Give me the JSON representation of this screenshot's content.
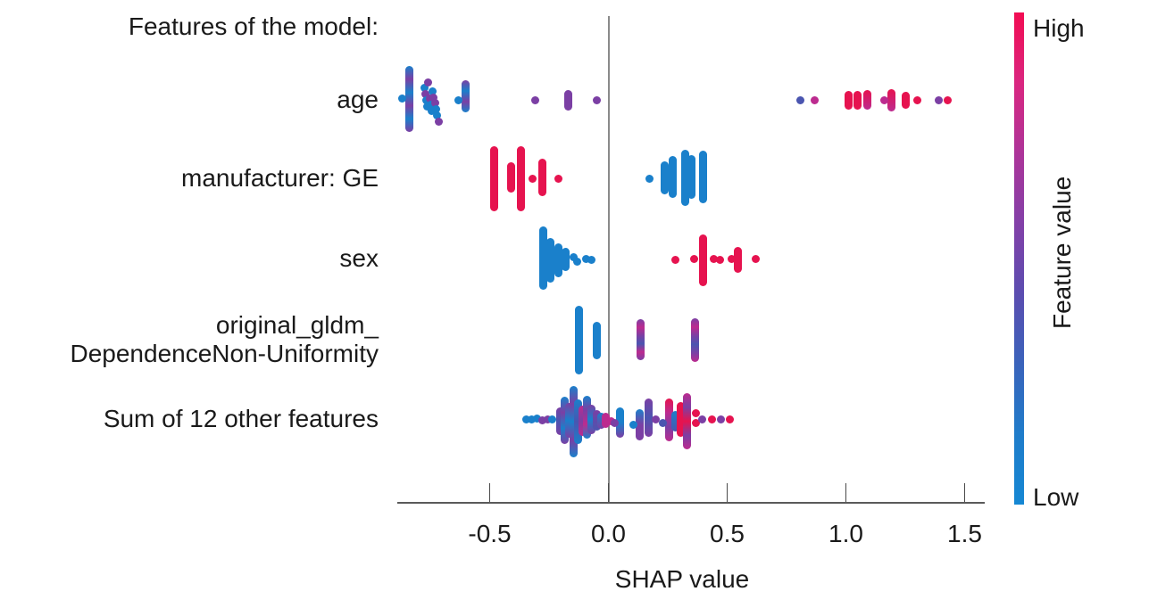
{
  "chart_data": {
    "type": "scatter",
    "subtype": "shap-beeswarm",
    "title": "Features of the model:",
    "xlabel": "SHAP value",
    "xlim": [
      -0.89,
      1.58
    ],
    "x_ticks": [
      -0.5,
      0.0,
      0.5,
      1.0,
      1.5
    ],
    "x_tick_labels": [
      "-0.5",
      "0.0",
      "0.5",
      "1.0",
      "1.5"
    ],
    "grid": false,
    "zero_reference_line": true,
    "legend": {
      "position": "right",
      "colorbar_label": "Feature value",
      "high": "High",
      "low": "Low",
      "gradient": [
        "#f20c52",
        "#da2680",
        "#ad3499",
        "#8340a8",
        "#5b4db0",
        "#3a63bb",
        "#1f7cca",
        "#1587d3"
      ]
    },
    "palette": {
      "B": "#1a80cb",
      "V": "#4a55b0",
      "P": "#7b3fa4",
      "M": "#bc2b8f",
      "R": "#e6134f"
    },
    "features": [
      {
        "label": "age",
        "bars": [
          [
            -0.84,
            -34,
            31,
            [
              "B",
              "P",
              "B",
              "P",
              "B",
              "P"
            ]
          ],
          [
            -0.6,
            -18,
            9,
            [
              "P",
              "B",
              "P",
              "B"
            ]
          ],
          [
            -0.17,
            -7,
            7,
            [
              "P"
            ]
          ],
          [
            1.01,
            -6,
            6,
            [
              "R"
            ]
          ],
          [
            1.05,
            -6,
            6,
            [
              "R"
            ]
          ],
          [
            1.09,
            -7,
            6,
            [
              "R",
              "M"
            ]
          ],
          [
            1.19,
            -8,
            8,
            [
              "R",
              "M"
            ]
          ],
          [
            1.25,
            -5,
            5,
            [
              "R"
            ]
          ]
        ],
        "dots": [
          [
            -0.87,
            -2,
            "B"
          ],
          [
            -0.775,
            -14,
            "B"
          ],
          [
            -0.77,
            -7,
            "P"
          ],
          [
            -0.768,
            0,
            "B"
          ],
          [
            -0.763,
            7,
            "B"
          ],
          [
            -0.758,
            -20,
            "P"
          ],
          [
            -0.753,
            -2,
            "P"
          ],
          [
            -0.748,
            5,
            "B"
          ],
          [
            -0.744,
            12,
            "B"
          ],
          [
            -0.74,
            -10,
            "B"
          ],
          [
            -0.735,
            -3,
            "P"
          ],
          [
            -0.73,
            3,
            "P"
          ],
          [
            -0.726,
            10,
            "B"
          ],
          [
            -0.72,
            17,
            "B"
          ],
          [
            -0.716,
            24,
            "P"
          ],
          [
            -0.63,
            0,
            "B"
          ],
          [
            -0.31,
            0,
            "P"
          ],
          [
            -0.05,
            0,
            "P"
          ],
          [
            0.81,
            0,
            "V"
          ],
          [
            0.87,
            0,
            "M"
          ],
          [
            1.16,
            0,
            "M"
          ],
          [
            1.3,
            0,
            "R"
          ],
          [
            1.39,
            0,
            "P"
          ],
          [
            1.43,
            0,
            "R"
          ]
        ]
      },
      {
        "label": "manufacturer: GE",
        "bars": [
          [
            -0.48,
            -32,
            32,
            [
              "R"
            ]
          ],
          [
            -0.41,
            -14,
            11,
            [
              "R"
            ]
          ],
          [
            -0.37,
            -32,
            32,
            [
              "R"
            ]
          ],
          [
            -0.28,
            -18,
            15,
            [
              "R"
            ]
          ],
          [
            0.237,
            -15,
            13,
            [
              "B"
            ]
          ],
          [
            0.271,
            -21,
            17,
            [
              "B"
            ]
          ],
          [
            0.323,
            -28,
            26,
            [
              "B"
            ]
          ],
          [
            0.35,
            -22,
            18,
            [
              "B"
            ]
          ],
          [
            0.398,
            -27,
            23,
            [
              "B"
            ]
          ]
        ],
        "dots": [
          [
            -0.32,
            0,
            "R"
          ],
          [
            -0.21,
            0,
            "R"
          ],
          [
            0.173,
            0,
            "B"
          ]
        ]
      },
      {
        "label": "sex",
        "bars": [
          [
            -0.275,
            -32,
            30,
            [
              "B"
            ]
          ],
          [
            -0.243,
            -19,
            22,
            [
              "B"
            ]
          ],
          [
            -0.209,
            -13,
            16,
            [
              "B"
            ]
          ],
          [
            -0.181,
            -8,
            9,
            [
              "B"
            ]
          ],
          [
            0.398,
            -23,
            26,
            [
              "R"
            ]
          ],
          [
            0.545,
            -9,
            11,
            [
              "R"
            ]
          ]
        ],
        "dots": [
          [
            -0.147,
            -2,
            "B"
          ],
          [
            -0.132,
            3,
            "B"
          ],
          [
            -0.094,
            0,
            "B"
          ],
          [
            -0.071,
            1,
            "B"
          ],
          [
            0.283,
            1,
            "R"
          ],
          [
            0.362,
            0,
            "R"
          ],
          [
            0.444,
            0,
            "R"
          ],
          [
            0.47,
            1,
            "R"
          ],
          [
            0.52,
            0,
            "R"
          ],
          [
            0.62,
            0,
            "R"
          ]
        ]
      },
      {
        "label": "original_gldm_\nDependenceNon-Uniformity",
        "bars": [
          [
            -0.124,
            -34,
            34,
            [
              "B"
            ]
          ],
          [
            -0.049,
            -16,
            17,
            [
              "B"
            ]
          ],
          [
            0.135,
            -19,
            18,
            [
              "P",
              "M",
              "P",
              "V",
              "M",
              "P"
            ]
          ],
          [
            0.365,
            -20,
            20,
            [
              "P",
              "M",
              "P",
              "V",
              "P",
              "M"
            ]
          ]
        ],
        "dots": []
      },
      {
        "label": "Sum of 12 other features",
        "bars": [
          [
            -0.203,
            -9,
            13,
            [
              "P",
              "V",
              "P"
            ]
          ],
          [
            -0.184,
            -21,
            23,
            [
              "B",
              "P",
              "B",
              "P"
            ]
          ],
          [
            -0.165,
            -14,
            16,
            [
              "P",
              "B",
              "P"
            ]
          ],
          [
            -0.147,
            -33,
            38,
            [
              "B",
              "P",
              "B",
              "P",
              "B"
            ]
          ],
          [
            -0.128,
            -18,
            23,
            [
              "B",
              "V",
              "B"
            ]
          ],
          [
            -0.109,
            -11,
            14,
            [
              "M",
              "P",
              "M"
            ]
          ],
          [
            -0.09,
            -22,
            17,
            [
              "B",
              "P",
              "M",
              "B"
            ]
          ],
          [
            -0.071,
            -12,
            12,
            [
              "P",
              "B",
              "P"
            ]
          ],
          [
            -0.049,
            -6,
            8,
            [
              "P",
              "V"
            ]
          ],
          [
            -0.03,
            -3,
            6,
            [
              "B",
              "P"
            ]
          ],
          [
            -0.012,
            -3,
            5,
            [
              "M"
            ]
          ],
          [
            0.049,
            -9,
            16,
            [
              "B",
              "B",
              "P"
            ]
          ],
          [
            0.132,
            -7,
            19,
            [
              "B",
              "P",
              "P"
            ]
          ],
          [
            0.169,
            -19,
            15,
            [
              "P",
              "V",
              "P"
            ]
          ],
          [
            0.256,
            -19,
            20,
            [
              "R",
              "M",
              "P",
              "M"
            ]
          ],
          [
            0.283,
            -5,
            9,
            [
              "B",
              "V"
            ]
          ],
          [
            0.305,
            -15,
            15,
            [
              "R"
            ]
          ],
          [
            0.331,
            -25,
            29,
            [
              "M",
              "P",
              "R",
              "P",
              "M"
            ]
          ]
        ],
        "dots": [
          [
            -0.345,
            0,
            "B"
          ],
          [
            -0.324,
            0,
            "B"
          ],
          [
            -0.302,
            -1,
            "B"
          ],
          [
            -0.278,
            1,
            "P"
          ],
          [
            -0.257,
            0,
            "P"
          ],
          [
            -0.238,
            0,
            "B"
          ],
          [
            0.012,
            2,
            "M"
          ],
          [
            0.028,
            4,
            "P"
          ],
          [
            0.105,
            6,
            "B"
          ],
          [
            0.199,
            0,
            "P"
          ],
          [
            0.229,
            4,
            "V"
          ],
          [
            0.368,
            -7,
            "R"
          ],
          [
            0.368,
            4,
            "R"
          ],
          [
            0.395,
            0,
            "P"
          ],
          [
            0.436,
            0,
            "R"
          ],
          [
            0.474,
            0,
            "P"
          ],
          [
            0.511,
            0,
            "R"
          ]
        ]
      }
    ]
  }
}
